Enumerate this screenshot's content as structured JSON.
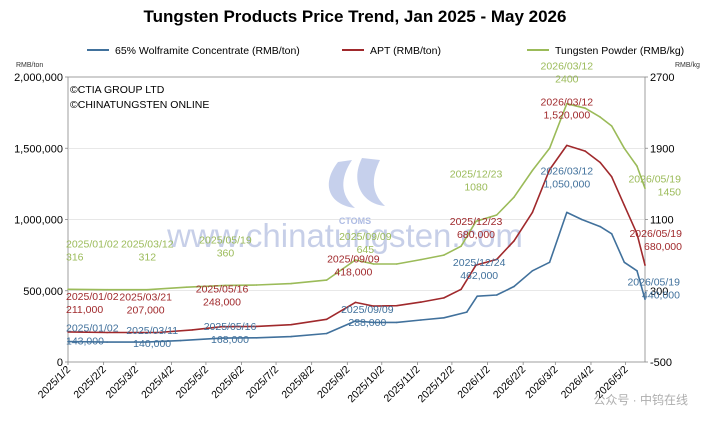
{
  "chart_data": {
    "type": "line",
    "title": "Tungsten Products Price Trend, Jan 2025 - May 2026",
    "left_unit": "RMB/ton",
    "right_unit": "RMB/kg",
    "left_axis": {
      "min": 0,
      "max": 2000000,
      "step": 500000,
      "ticks": [
        "0",
        "500,000",
        "1,000,000",
        "1,500,000",
        "2,000,000"
      ]
    },
    "right_axis": {
      "min": -500,
      "max": 2700,
      "step": 800,
      "ticks": [
        "-500",
        "300",
        "1100",
        "1900",
        "2700"
      ]
    },
    "x_axis": {
      "start": "2025-01-02",
      "end": "2026-05-19",
      "ticks": [
        "2025/1/2",
        "2025/2/2",
        "2025/3/2",
        "2025/4/2",
        "2025/5/2",
        "2025/6/2",
        "2025/7/2",
        "2025/8/2",
        "2025/9/2",
        "2025/10/2",
        "2025/11/2",
        "2025/12/2",
        "2026/1/2",
        "2026/2/2",
        "2026/3/2",
        "2026/4/2",
        "2026/5/2"
      ]
    },
    "copyright": [
      "©CTIA GROUP LTD",
      "©CHINATUNGSTEN ONLINE"
    ],
    "watermark": "www.chinatungsten.com",
    "logo_text": "CTOMS",
    "footer_text": "公众号 · 中钨在线",
    "series": [
      {
        "name": "65% Wolframite Concentrate (RMB/ton)",
        "axis": "left",
        "color": "#41719c",
        "points": [
          [
            "2025-01-02",
            143000
          ],
          [
            "2025-02-05",
            140000
          ],
          [
            "2025-03-11",
            140000
          ],
          [
            "2025-04-10",
            150000
          ],
          [
            "2025-05-16",
            168000
          ],
          [
            "2025-06-15",
            170000
          ],
          [
            "2025-07-15",
            178000
          ],
          [
            "2025-08-15",
            200000
          ],
          [
            "2025-09-09",
            288000
          ],
          [
            "2025-09-25",
            278000
          ],
          [
            "2025-10-15",
            278000
          ],
          [
            "2025-11-05",
            295000
          ],
          [
            "2025-11-25",
            310000
          ],
          [
            "2025-12-15",
            350000
          ],
          [
            "2025-12-24",
            462000
          ],
          [
            "2026-01-10",
            470000
          ],
          [
            "2026-01-25",
            530000
          ],
          [
            "2026-02-10",
            640000
          ],
          [
            "2026-02-25",
            700000
          ],
          [
            "2026-03-12",
            1050000
          ],
          [
            "2026-03-25",
            1000000
          ],
          [
            "2026-04-10",
            950000
          ],
          [
            "2026-04-20",
            900000
          ],
          [
            "2026-05-01",
            700000
          ],
          [
            "2026-05-12",
            640000
          ],
          [
            "2026-05-19",
            440000
          ]
        ]
      },
      {
        "name": "APT (RMB/ton)",
        "axis": "left",
        "color": "#a0292c",
        "points": [
          [
            "2025-01-02",
            211000
          ],
          [
            "2025-02-05",
            207000
          ],
          [
            "2025-03-21",
            207000
          ],
          [
            "2025-04-20",
            225000
          ],
          [
            "2025-05-16",
            248000
          ],
          [
            "2025-06-15",
            250000
          ],
          [
            "2025-07-15",
            262000
          ],
          [
            "2025-08-15",
            300000
          ],
          [
            "2025-09-09",
            418000
          ],
          [
            "2025-09-25",
            392000
          ],
          [
            "2025-10-15",
            395000
          ],
          [
            "2025-11-05",
            420000
          ],
          [
            "2025-11-25",
            450000
          ],
          [
            "2025-12-10",
            510000
          ],
          [
            "2025-12-23",
            680000
          ],
          [
            "2026-01-10",
            720000
          ],
          [
            "2026-01-25",
            850000
          ],
          [
            "2026-02-10",
            1050000
          ],
          [
            "2026-02-25",
            1350000
          ],
          [
            "2026-03-12",
            1520000
          ],
          [
            "2026-03-28",
            1480000
          ],
          [
            "2026-04-10",
            1400000
          ],
          [
            "2026-04-20",
            1300000
          ],
          [
            "2026-05-01",
            1100000
          ],
          [
            "2026-05-12",
            900000
          ],
          [
            "2026-05-19",
            680000
          ]
        ]
      },
      {
        "name": "Tungsten Powder (RMB/kg)",
        "axis": "right",
        "color": "#9bbb59",
        "points": [
          [
            "2025-01-02",
            316
          ],
          [
            "2025-02-05",
            312
          ],
          [
            "2025-03-12",
            312
          ],
          [
            "2025-04-15",
            340
          ],
          [
            "2025-05-19",
            360
          ],
          [
            "2025-06-15",
            365
          ],
          [
            "2025-07-15",
            380
          ],
          [
            "2025-08-15",
            420
          ],
          [
            "2025-09-09",
            645
          ],
          [
            "2025-09-25",
            600
          ],
          [
            "2025-10-15",
            600
          ],
          [
            "2025-11-05",
            650
          ],
          [
            "2025-11-25",
            700
          ],
          [
            "2025-12-10",
            800
          ],
          [
            "2025-12-23",
            1080
          ],
          [
            "2026-01-10",
            1150
          ],
          [
            "2026-01-25",
            1350
          ],
          [
            "2026-02-10",
            1650
          ],
          [
            "2026-02-25",
            1900
          ],
          [
            "2026-03-12",
            2400
          ],
          [
            "2026-03-28",
            2350
          ],
          [
            "2026-04-10",
            2250
          ],
          [
            "2026-04-20",
            2150
          ],
          [
            "2026-05-01",
            1900
          ],
          [
            "2026-05-12",
            1700
          ],
          [
            "2026-05-19",
            1450
          ]
        ]
      }
    ],
    "annotations": [
      {
        "series": 0,
        "date": "2025-01-02",
        "value": 143000,
        "date_text": "2025/01/02",
        "value_text": "143,000",
        "align": "start",
        "dx": -2,
        "dy": -10
      },
      {
        "series": 0,
        "date": "2025-03-11",
        "value": 140000,
        "date_text": "2025/03/11",
        "value_text": "140,000",
        "align": "middle",
        "dx": 6,
        "dy": -8
      },
      {
        "series": 0,
        "date": "2025-05-16",
        "value": 168000,
        "date_text": "2025/05/16",
        "value_text": "168,000",
        "align": "middle",
        "dx": 8,
        "dy": -8
      },
      {
        "series": 0,
        "date": "2025-09-09",
        "value": 288000,
        "date_text": "2025/09/09",
        "value_text": "288,000",
        "align": "middle",
        "dx": 12,
        "dy": -8
      },
      {
        "series": 0,
        "date": "2025-12-24",
        "value": 462000,
        "date_text": "2025/12/24",
        "value_text": "462,000",
        "align": "middle",
        "dx": 2,
        "dy": -30
      },
      {
        "series": 0,
        "date": "2026-03-12",
        "value": 1050000,
        "date_text": "2026/03/12",
        "value_text": "1,050,000",
        "align": "middle",
        "dx": 0,
        "dy": -38
      },
      {
        "series": 0,
        "date": "2026-05-19",
        "value": 440000,
        "date_text": "2026/05/19",
        "value_text": "440,000",
        "align": "end",
        "dx": 35,
        "dy": -14
      },
      {
        "series": 1,
        "date": "2025-01-02",
        "value": 211000,
        "date_text": "2025/01/02",
        "value_text": "211,000",
        "align": "start",
        "dx": -2,
        "dy": -32
      },
      {
        "series": 1,
        "date": "2025-03-21",
        "value": 207000,
        "date_text": "2025/03/21",
        "value_text": "207,000",
        "align": "middle",
        "dx": -12,
        "dy": -32
      },
      {
        "series": 1,
        "date": "2025-05-16",
        "value": 248000,
        "date_text": "2025/05/16",
        "value_text": "248,000",
        "align": "middle",
        "dx": 0,
        "dy": -34
      },
      {
        "series": 1,
        "date": "2025-09-09",
        "value": 418000,
        "date_text": "2025/09/09",
        "value_text": "418,000",
        "align": "middle",
        "dx": -2,
        "dy": -40
      },
      {
        "series": 1,
        "date": "2025-12-23",
        "value": 680000,
        "date_text": "2025/12/23",
        "value_text": "680,000",
        "align": "middle",
        "dx": 0,
        "dy": -40
      },
      {
        "series": 1,
        "date": "2026-03-12",
        "value": 1520000,
        "date_text": "2026/03/12",
        "value_text": "1,520,000",
        "align": "middle",
        "dx": 0,
        "dy": -40
      },
      {
        "series": 1,
        "date": "2026-05-19",
        "value": 680000,
        "date_text": "2026/05/19",
        "value_text": "680,000",
        "align": "end",
        "dx": 37,
        "dy": -28
      },
      {
        "series": 2,
        "date": "2025-01-02",
        "value": 316,
        "date_text": "2025/01/02",
        "value_text": "316",
        "align": "start",
        "dx": -2,
        "dy": -42
      },
      {
        "series": 2,
        "date": "2025-03-12",
        "value": 312,
        "date_text": "2025/03/12",
        "value_text": "312",
        "align": "middle",
        "dx": 0,
        "dy": -42
      },
      {
        "series": 2,
        "date": "2025-05-19",
        "value": 360,
        "date_text": "2025/05/19",
        "value_text": "360",
        "align": "middle",
        "dx": 0,
        "dy": -42
      },
      {
        "series": 2,
        "date": "2025-09-09",
        "value": 645,
        "date_text": "2025/09/09",
        "value_text": "645",
        "align": "middle",
        "dx": 10,
        "dy": -20
      },
      {
        "series": 2,
        "date": "2025-12-23",
        "value": 1080,
        "date_text": "2025/12/23",
        "value_text": "1080",
        "align": "middle",
        "dx": 0,
        "dy": -44
      },
      {
        "series": 2,
        "date": "2026-03-12",
        "value": 2400,
        "date_text": "2026/03/12",
        "value_text": "2400",
        "align": "middle",
        "dx": 0,
        "dy": -34
      },
      {
        "series": 2,
        "date": "2026-05-19",
        "value": 1450,
        "date_text": "2026/05/19",
        "value_text": "1450",
        "align": "end",
        "dx": 36,
        "dy": -6
      }
    ]
  }
}
